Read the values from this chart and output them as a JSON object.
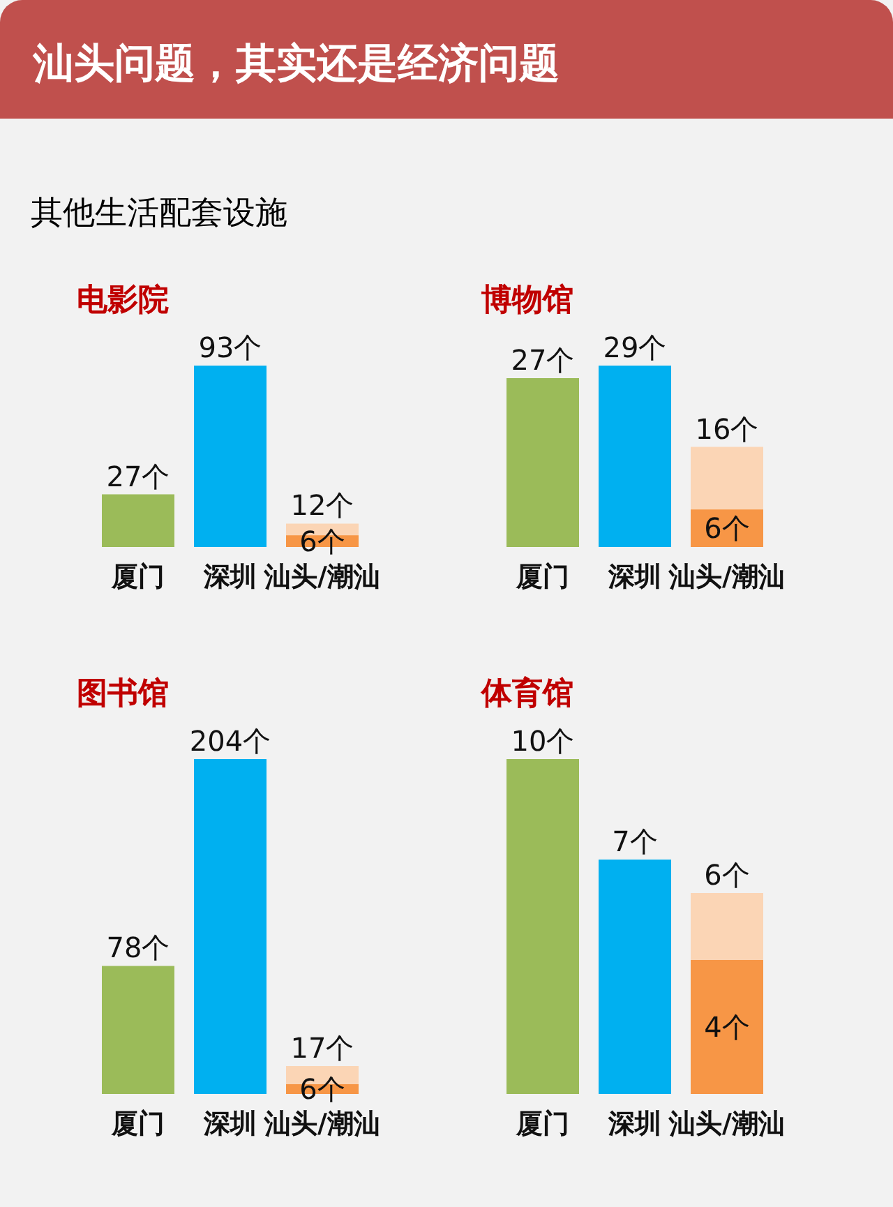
{
  "chart_data": [
    {
      "type": "other",
      "title": "汕头问题，其实还是经济问题",
      "subtitle": "其他生活配套设施"
    },
    {
      "type": "bar",
      "title": "电影院",
      "categories": [
        "厦门",
        "深圳",
        "汕头/潮汕"
      ],
      "series": [
        {
          "color": "#fbd5b5",
          "values": [
            null,
            null,
            12
          ],
          "value_labels": [
            null,
            null,
            "12个"
          ]
        },
        {
          "colors": [
            "#9bbb59",
            "#00b0f0",
            "#f79646"
          ],
          "values": [
            27,
            93,
            6
          ],
          "value_labels": [
            "27个",
            "93个",
            "6个"
          ]
        }
      ]
    },
    {
      "type": "bar",
      "title": "博物馆",
      "categories": [
        "厦门",
        "深圳",
        "汕头/潮汕"
      ],
      "series": [
        {
          "color": "#fbd5b5",
          "values": [
            null,
            null,
            16
          ],
          "value_labels": [
            null,
            null,
            "16个"
          ]
        },
        {
          "colors": [
            "#9bbb59",
            "#00b0f0",
            "#f79646"
          ],
          "values": [
            27,
            29,
            6
          ],
          "value_labels": [
            "27个",
            "29个",
            "6个"
          ]
        }
      ]
    },
    {
      "type": "bar",
      "title": "图书馆",
      "categories": [
        "厦门",
        "深圳",
        "汕头/潮汕"
      ],
      "series": [
        {
          "color": "#fbd5b5",
          "values": [
            null,
            null,
            17
          ],
          "value_labels": [
            null,
            null,
            "17个"
          ]
        },
        {
          "colors": [
            "#9bbb59",
            "#00b0f0",
            "#f79646"
          ],
          "values": [
            78,
            204,
            6
          ],
          "value_labels": [
            "78个",
            "204个",
            "6个"
          ]
        }
      ]
    },
    {
      "type": "bar",
      "title": "体育馆",
      "categories": [
        "厦门",
        "深圳",
        "汕头/潮汕"
      ],
      "series": [
        {
          "color": "#fbd5b5",
          "values": [
            null,
            null,
            6
          ],
          "value_labels": [
            null,
            null,
            "6个"
          ]
        },
        {
          "colors": [
            "#9bbb59",
            "#00b0f0",
            "#f79646"
          ],
          "values": [
            10,
            7,
            4
          ],
          "value_labels": [
            "10个",
            "7个",
            "4个"
          ]
        }
      ]
    }
  ]
}
